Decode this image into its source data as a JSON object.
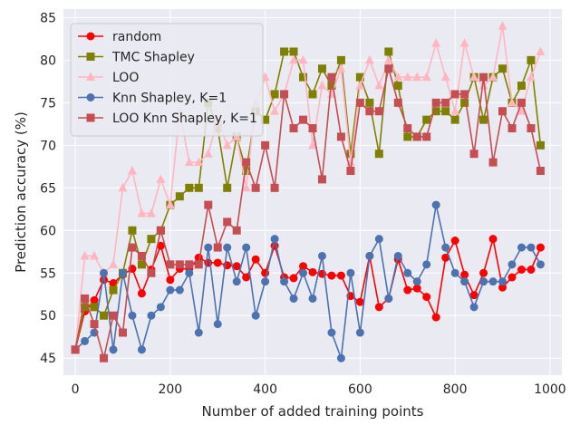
{
  "chart_data": {
    "type": "line",
    "xlabel": "Number of added training points",
    "ylabel": "Prediction accuracy (%)",
    "xlim": [
      -25,
      1025
    ],
    "ylim": [
      43,
      86
    ],
    "xticks": [
      0,
      200,
      400,
      600,
      800,
      1000
    ],
    "yticks": [
      45,
      50,
      55,
      60,
      65,
      70,
      75,
      80,
      85
    ],
    "grid": true,
    "legend_position": "top-left",
    "series": [
      {
        "name": "random",
        "color": "#ff0000",
        "marker": "circle",
        "x": [
          0,
          20,
          40,
          60,
          80,
          100,
          120,
          140,
          160,
          180,
          200,
          220,
          240,
          260,
          280,
          300,
          320,
          340,
          360,
          380,
          400,
          420,
          440,
          460,
          480,
          500,
          520,
          540,
          560,
          580,
          600,
          620,
          640,
          660,
          680,
          700,
          720,
          740,
          760,
          780,
          800,
          820,
          840,
          860,
          880,
          900,
          920,
          940,
          960,
          980
        ],
        "y": [
          46,
          50.5,
          51.8,
          54.2,
          53.8,
          54.8,
          55.5,
          52.6,
          55.4,
          58.2,
          54.2,
          55.5,
          55.5,
          56.8,
          56.2,
          56.2,
          55.9,
          55.8,
          54.5,
          56.6,
          55.0,
          58.2,
          54.5,
          54.4,
          55.8,
          55.1,
          54.9,
          54.7,
          54.7,
          52.3,
          51.6,
          57.0,
          51.0,
          52.0,
          56.6,
          53.0,
          53.2,
          52.2,
          49.8,
          56.8,
          58.8,
          54.8,
          52.4,
          55.0,
          59.0,
          53.3,
          54.5,
          55.4,
          55.4,
          58.0
        ]
      },
      {
        "name": "TMC Shapley",
        "color": "#808000",
        "marker": "square",
        "x": [
          0,
          20,
          40,
          60,
          80,
          100,
          120,
          140,
          160,
          180,
          200,
          220,
          240,
          260,
          280,
          300,
          320,
          340,
          360,
          380,
          400,
          420,
          440,
          460,
          480,
          500,
          520,
          540,
          560,
          580,
          600,
          620,
          640,
          660,
          680,
          700,
          720,
          740,
          760,
          780,
          800,
          820,
          840,
          860,
          880,
          900,
          920,
          940,
          960,
          980
        ],
        "y": [
          46,
          51,
          51,
          50,
          53,
          55,
          60,
          56,
          59,
          60,
          63,
          64,
          65,
          65,
          75,
          72,
          65,
          71,
          67,
          74,
          73,
          76,
          81,
          81,
          78,
          76,
          79,
          77,
          80,
          69,
          78,
          75,
          69,
          81,
          77,
          71,
          71,
          73,
          74,
          74,
          73,
          75,
          78,
          73,
          78,
          79,
          75,
          77,
          80,
          70
        ]
      },
      {
        "name": "LOO",
        "color": "#ffb6c1",
        "marker": "triangle",
        "x": [
          0,
          20,
          40,
          60,
          80,
          100,
          120,
          140,
          160,
          180,
          200,
          220,
          240,
          260,
          280,
          300,
          320,
          340,
          360,
          380,
          400,
          420,
          440,
          460,
          480,
          500,
          520,
          540,
          560,
          580,
          600,
          620,
          640,
          660,
          680,
          700,
          720,
          740,
          760,
          780,
          800,
          820,
          840,
          860,
          880,
          900,
          920,
          940,
          960,
          980
        ],
        "y": [
          46,
          57,
          57,
          55,
          56,
          65,
          67,
          62,
          62,
          66,
          63,
          74,
          68,
          68,
          69,
          73,
          70,
          71,
          65,
          75,
          78,
          74,
          76,
          80,
          80,
          70,
          77,
          76,
          79,
          68,
          77,
          80,
          77,
          80,
          78,
          78,
          78,
          78,
          82,
          78,
          74,
          82,
          78,
          77,
          78,
          84,
          75,
          74,
          78,
          81
        ]
      },
      {
        "name": "Knn Shapley, K=1",
        "color": "#4c72b0",
        "marker": "circle",
        "x": [
          0,
          20,
          40,
          60,
          80,
          100,
          120,
          140,
          160,
          180,
          200,
          220,
          240,
          260,
          280,
          300,
          320,
          340,
          360,
          380,
          400,
          420,
          440,
          460,
          480,
          500,
          520,
          540,
          560,
          580,
          600,
          620,
          640,
          660,
          680,
          700,
          720,
          740,
          760,
          780,
          800,
          820,
          840,
          860,
          880,
          900,
          920,
          940,
          960,
          980
        ],
        "y": [
          46,
          47,
          48,
          55,
          46,
          55,
          50,
          46,
          50,
          51,
          53,
          53,
          55,
          48,
          58,
          49,
          58,
          54,
          58,
          50,
          54,
          59,
          54,
          52,
          55,
          52,
          57,
          48,
          45,
          55,
          48,
          57,
          59,
          52,
          57,
          55,
          54,
          56,
          63,
          58,
          55,
          54,
          51,
          54,
          54,
          54,
          56,
          58,
          58,
          56
        ]
      },
      {
        "name": "LOO Knn Shapley, K=1",
        "color": "#c44e52",
        "marker": "square",
        "x": [
          0,
          20,
          40,
          60,
          80,
          100,
          120,
          140,
          160,
          180,
          200,
          220,
          240,
          260,
          280,
          300,
          320,
          340,
          360,
          380,
          400,
          420,
          440,
          460,
          480,
          500,
          520,
          540,
          560,
          580,
          600,
          620,
          640,
          660,
          680,
          700,
          720,
          740,
          760,
          780,
          800,
          820,
          840,
          860,
          880,
          900,
          920,
          940,
          960,
          980
        ],
        "y": [
          46,
          52,
          49,
          45,
          50,
          48,
          58,
          57,
          55,
          60,
          56,
          56,
          56,
          56,
          63,
          58,
          61,
          60,
          68,
          65,
          70,
          65,
          76,
          72,
          73,
          72,
          66,
          78,
          71,
          67,
          75,
          74,
          74,
          79,
          75,
          72,
          71,
          71,
          75,
          75,
          76,
          76,
          69,
          78,
          68,
          74,
          72,
          75,
          72,
          67
        ]
      }
    ]
  }
}
